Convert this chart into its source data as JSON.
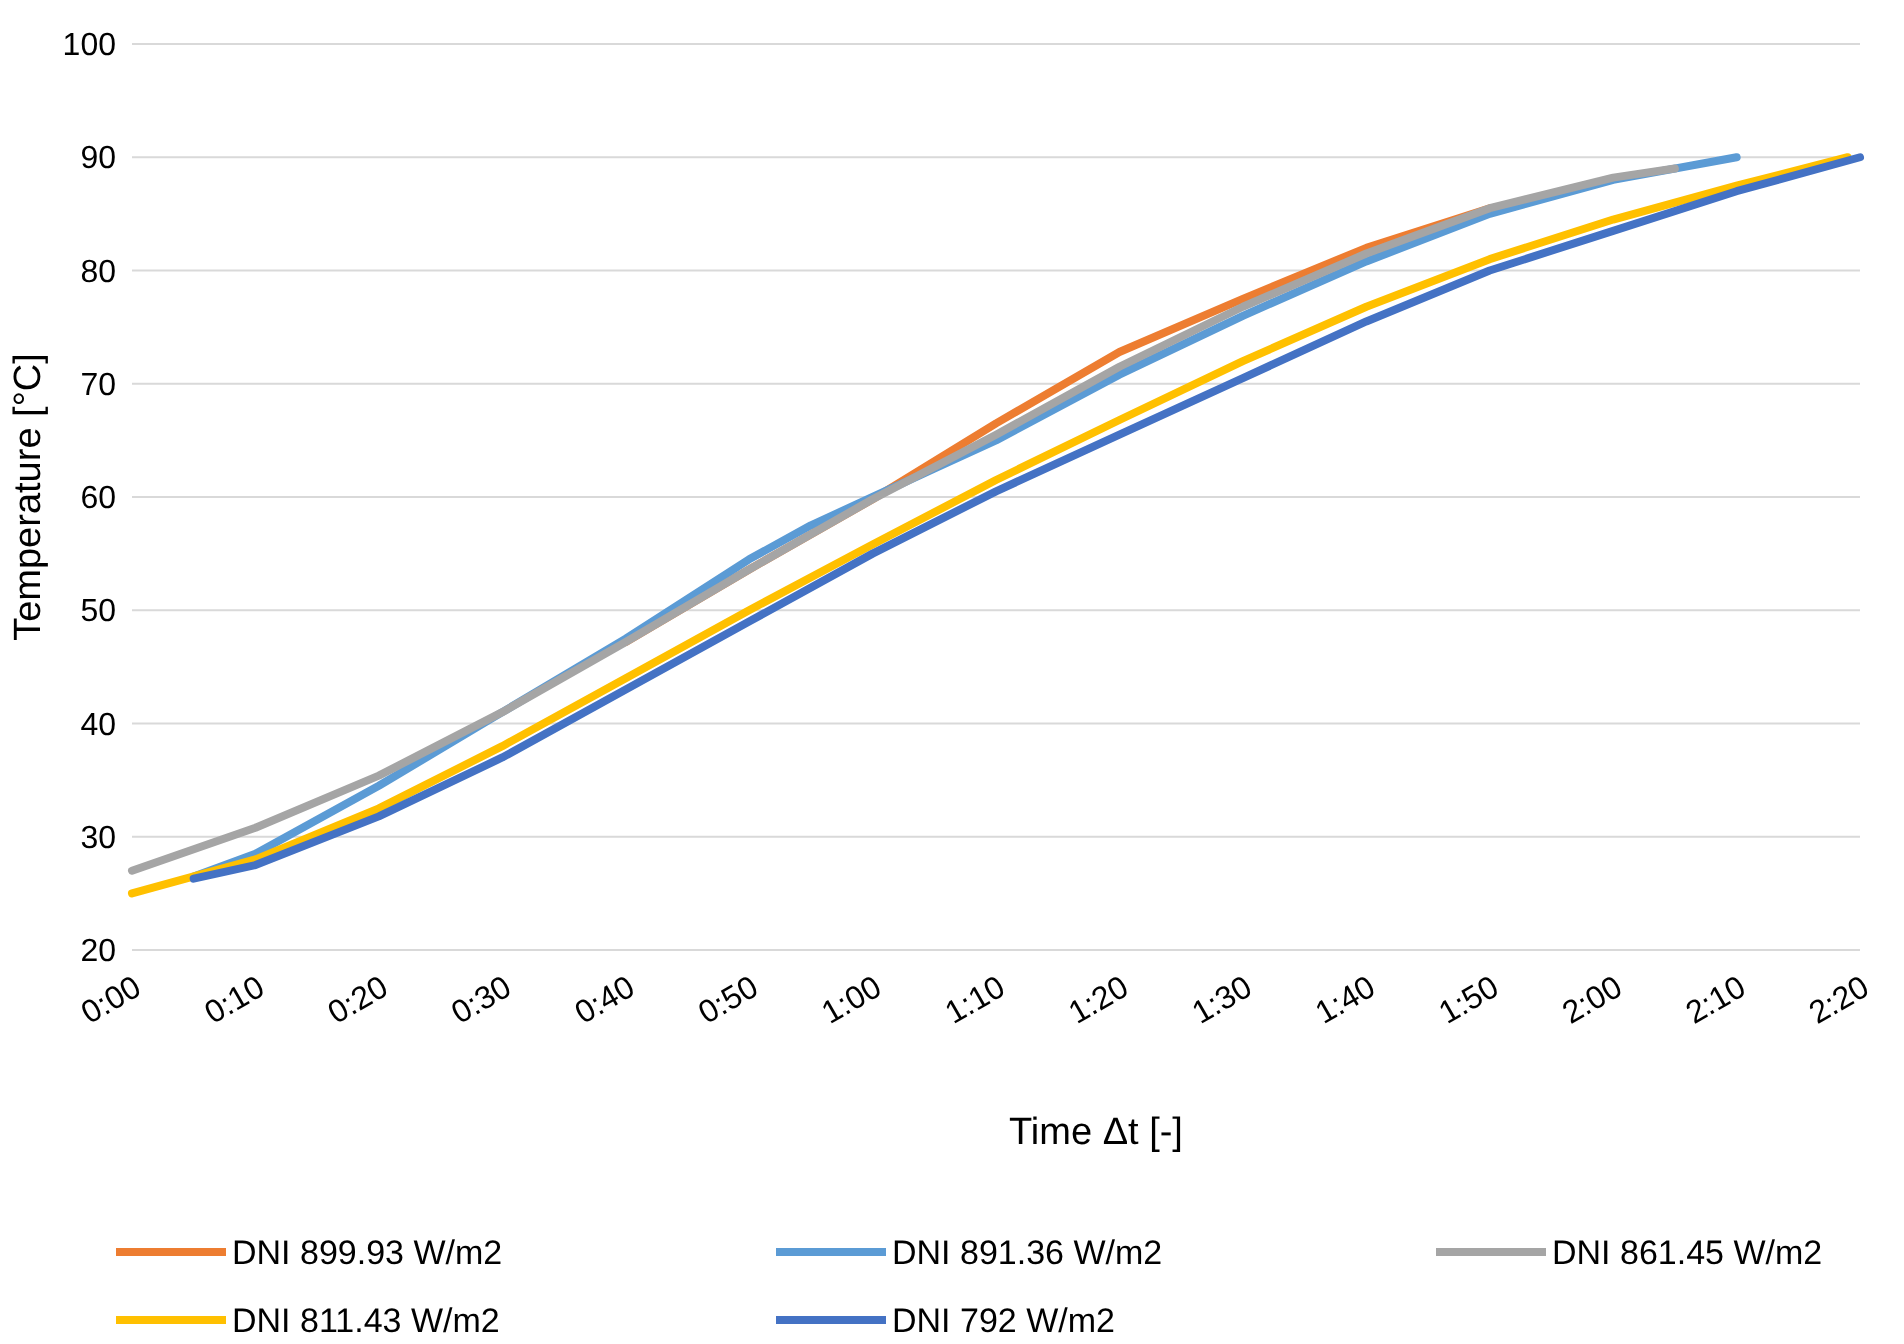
{
  "chart_data": {
    "type": "line",
    "xlabel": "Time Δt  [-]",
    "ylabel": "Temperature [°C]",
    "xlim": [
      0,
      2.3333
    ],
    "xticks": [
      {
        "value": 0,
        "label": "0:00"
      },
      {
        "value": 0.1667,
        "label": "0:10"
      },
      {
        "value": 0.3333,
        "label": "0:20"
      },
      {
        "value": 0.5,
        "label": "0:30"
      },
      {
        "value": 0.6667,
        "label": "0:40"
      },
      {
        "value": 0.8333,
        "label": "0:50"
      },
      {
        "value": 1,
        "label": "1:00"
      },
      {
        "value": 1.1667,
        "label": "1:10"
      },
      {
        "value": 1.3333,
        "label": "1:20"
      },
      {
        "value": 1.5,
        "label": "1:30"
      },
      {
        "value": 1.6667,
        "label": "1:40"
      },
      {
        "value": 1.8333,
        "label": "1:50"
      },
      {
        "value": 2,
        "label": "2:00"
      },
      {
        "value": 2.1667,
        "label": "2:10"
      },
      {
        "value": 2.3333,
        "label": "2:20"
      }
    ],
    "ylim": [
      20,
      100
    ],
    "yticks": [
      20,
      30,
      40,
      50,
      60,
      70,
      80,
      90,
      100
    ],
    "grid": "y",
    "legend": "bottom",
    "marker": "none",
    "line_style": "solid",
    "series": [
      {
        "name": "DNI 899.93 W/m2",
        "color": "#ed7d31",
        "x": [
          0.6667,
          0.8333,
          1,
          1.1667,
          1.3333,
          1.5,
          1.6667,
          1.8333
        ],
        "values": [
          47.2,
          53.6,
          59.8,
          66.5,
          72.8,
          77.5,
          82,
          85.5
        ]
      },
      {
        "name": "DNI 891.36 W/m2",
        "color": "#5b9bd5",
        "x": [
          0.0833,
          0.1667,
          0.3333,
          0.5,
          0.6667,
          0.8333,
          0.9167,
          1,
          1.0833,
          1.1667,
          1.3333,
          1.5,
          1.6667,
          1.8333,
          2,
          2.1667
        ],
        "values": [
          26.5,
          28.5,
          34.5,
          41,
          47.5,
          54.5,
          57.5,
          60,
          62.5,
          65,
          70.8,
          76,
          80.8,
          85,
          88,
          90
        ]
      },
      {
        "name": "DNI 861.45 W/m2",
        "color": "#a5a5a5",
        "x": [
          0,
          0.1667,
          0.3333,
          0.5,
          0.6667,
          0.8333,
          1,
          1.1667,
          1.3333,
          1.5,
          1.6667,
          1.8333,
          2,
          2.0833
        ],
        "values": [
          27,
          30.8,
          35.4,
          41,
          47.2,
          53.6,
          59.8,
          65.5,
          71.5,
          76.8,
          81.5,
          85.5,
          88.2,
          89
        ]
      },
      {
        "name": "DNI 811.43 W/m2",
        "color": "#ffc000",
        "x": [
          0,
          0.1667,
          0.3333,
          0.5,
          0.6667,
          0.8333,
          1,
          1.1667,
          1.3333,
          1.5,
          1.6667,
          1.8333,
          2,
          2.1667,
          2.3167
        ],
        "values": [
          25,
          28,
          32.5,
          38,
          44,
          50,
          55.8,
          61.5,
          66.8,
          72,
          76.8,
          81,
          84.5,
          87.5,
          90
        ]
      },
      {
        "name": "DNI 792 W/m2",
        "color": "#4472c4",
        "x": [
          0.0833,
          0.1667,
          0.3333,
          0.5,
          0.6667,
          0.8333,
          1,
          1.1667,
          1.3333,
          1.5,
          1.6667,
          1.8333,
          2,
          2.1667,
          2.3333
        ],
        "values": [
          26.3,
          27.5,
          31.8,
          37,
          43,
          49,
          55,
          60.5,
          65.5,
          70.5,
          75.5,
          80,
          83.5,
          87,
          90
        ]
      }
    ]
  }
}
